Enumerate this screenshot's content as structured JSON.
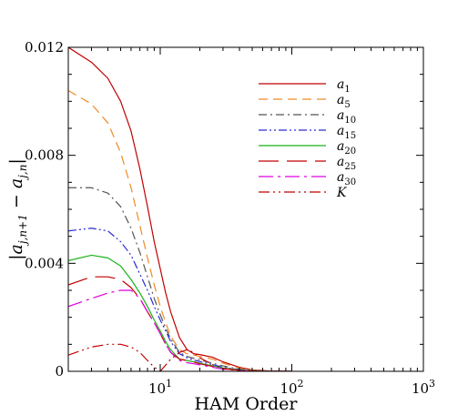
{
  "chart_data": {
    "type": "line",
    "xlabel": "HAM Order",
    "ylabel": "|a_{j,n+1} − a_{j,n}|",
    "ylabel_parts": {
      "bar": "|",
      "a": "a",
      "sub1": "j,n+1",
      "minus": " − ",
      "sub2": "j,n"
    },
    "x_scale": "log",
    "xlim": [
      2,
      1000
    ],
    "ylim": [
      0,
      0.012
    ],
    "x_ticks": [
      {
        "value": 10,
        "base": "10",
        "exp": "1"
      },
      {
        "value": 100,
        "base": "10",
        "exp": "2"
      },
      {
        "value": 1000,
        "base": "10",
        "exp": "3"
      }
    ],
    "y_ticks": [
      {
        "value": 0,
        "label": "0"
      },
      {
        "value": 0.004,
        "label": "0.004"
      },
      {
        "value": 0.008,
        "label": "0.008"
      },
      {
        "value": 0.012,
        "label": "0.012"
      }
    ],
    "grid": false,
    "legend_position": "upper-right",
    "series": [
      {
        "name": "a_1",
        "base": "a",
        "sub": "1",
        "color": "#c00000",
        "dash": "",
        "x": [
          2,
          3,
          4,
          5,
          6,
          7,
          8,
          9,
          10,
          11,
          12,
          14,
          16,
          18,
          20,
          25,
          30,
          40,
          50,
          70,
          100
        ],
        "y": [
          0.012,
          0.01145,
          0.01085,
          0.01,
          0.0089,
          0.0075,
          0.0061,
          0.0048,
          0.0038,
          0.0029,
          0.0022,
          0.00125,
          0.0008,
          0.00065,
          0.00062,
          0.00052,
          0.00035,
          0.00015,
          5e-05,
          1e-05,
          0
        ]
      },
      {
        "name": "a_5",
        "base": "a",
        "sub": "5",
        "color": "#f08a24",
        "dash": "10,6",
        "x": [
          2,
          3,
          4,
          5,
          6,
          7,
          8,
          9,
          10,
          11,
          12,
          14,
          16,
          18,
          20,
          25,
          30,
          40,
          50,
          70,
          100
        ],
        "y": [
          0.0104,
          0.0099,
          0.0092,
          0.0081,
          0.0068,
          0.0054,
          0.0042,
          0.0032,
          0.0024,
          0.0018,
          0.0013,
          0.0008,
          0.00065,
          0.0006,
          0.00055,
          0.00045,
          0.0003,
          0.00012,
          4e-05,
          1e-05,
          0
        ]
      },
      {
        "name": "a_10",
        "base": "a",
        "sub": "10",
        "color": "#555555",
        "dash": "9,4,2,4",
        "x": [
          2,
          3,
          4,
          5,
          6,
          7,
          8,
          9,
          10,
          11,
          12,
          14,
          16,
          18,
          20,
          25,
          30,
          40,
          50,
          70,
          100
        ],
        "y": [
          0.0068,
          0.0068,
          0.0066,
          0.0061,
          0.0053,
          0.0044,
          0.0035,
          0.0027,
          0.0021,
          0.0016,
          0.0012,
          0.0007,
          0.00055,
          0.00048,
          0.00042,
          0.0003,
          0.0002,
          8e-05,
          3e-05,
          0,
          0
        ]
      },
      {
        "name": "a_15",
        "base": "a",
        "sub": "15",
        "color": "#2b2bd6",
        "dash": "9,3,2,3,2,3",
        "x": [
          2,
          3,
          4,
          5,
          6,
          7,
          8,
          9,
          10,
          11,
          12,
          14,
          16,
          18,
          20,
          25,
          30,
          40,
          50,
          70,
          100
        ],
        "y": [
          0.0052,
          0.0053,
          0.0052,
          0.0048,
          0.0043,
          0.0036,
          0.003,
          0.0024,
          0.0019,
          0.0015,
          0.0011,
          0.00065,
          0.0005,
          0.00042,
          0.00036,
          0.00025,
          0.00015,
          6e-05,
          2e-05,
          0,
          0
        ]
      },
      {
        "name": "a_20",
        "base": "a",
        "sub": "20",
        "color": "#18b418",
        "dash": "",
        "x": [
          2,
          3,
          4,
          5,
          6,
          7,
          8,
          9,
          10,
          11,
          12,
          14,
          16,
          18,
          20,
          25,
          30,
          40,
          50,
          70,
          100
        ],
        "y": [
          0.0041,
          0.0043,
          0.0042,
          0.0039,
          0.0034,
          0.0029,
          0.0024,
          0.0019,
          0.0015,
          0.0011,
          0.0008,
          0.00045,
          0.0004,
          0.00035,
          0.0003,
          0.0002,
          0.00012,
          5e-05,
          2e-05,
          0,
          0
        ]
      },
      {
        "name": "a_25",
        "base": "a",
        "sub": "25",
        "color": "#c00000",
        "dash": "22,9",
        "x": [
          2,
          3,
          4,
          5,
          6,
          7,
          8,
          9,
          10,
          11,
          12,
          14,
          16,
          18,
          20,
          25,
          30,
          40,
          50,
          70,
          100
        ],
        "y": [
          0.0032,
          0.0035,
          0.0035,
          0.0034,
          0.0031,
          0.0027,
          0.0022,
          0.0018,
          0.0014,
          0.001,
          0.0007,
          0.00045,
          0.0004,
          0.00034,
          0.00028,
          0.00018,
          0.0001,
          4e-05,
          1e-05,
          0,
          0
        ]
      },
      {
        "name": "a_30",
        "base": "a",
        "sub": "30",
        "color": "#e000e0",
        "dash": "16,5,3,5",
        "x": [
          2,
          3,
          4,
          5,
          6,
          7,
          8,
          9,
          10,
          11,
          12,
          14,
          16,
          18,
          20,
          25,
          30,
          40,
          50,
          70,
          100
        ],
        "y": [
          0.0024,
          0.0027,
          0.0029,
          0.003,
          0.003,
          0.0027,
          0.0022,
          0.0018,
          0.0014,
          0.001,
          0.0007,
          0.0004,
          0.00032,
          0.00028,
          0.00024,
          0.00015,
          8e-05,
          3e-05,
          1e-05,
          0,
          0
        ]
      },
      {
        "name": "K",
        "base": "K",
        "sub": "",
        "color": "#c00000",
        "dash": "12,4,2,4,2,4",
        "x": [
          2,
          3,
          4,
          5,
          6,
          7,
          8,
          9,
          10,
          12,
          14,
          16,
          18,
          20,
          25,
          30,
          40,
          50,
          70,
          100
        ],
        "y": [
          0.0006,
          0.0009,
          0.001,
          0.001,
          0.0009,
          0.0007,
          0.0004,
          0.00015,
          0,
          0.00045,
          0.0007,
          0.0008,
          0.0007,
          0.0005,
          0.00025,
          0.0001,
          3e-05,
          1e-05,
          0,
          0
        ]
      }
    ]
  }
}
